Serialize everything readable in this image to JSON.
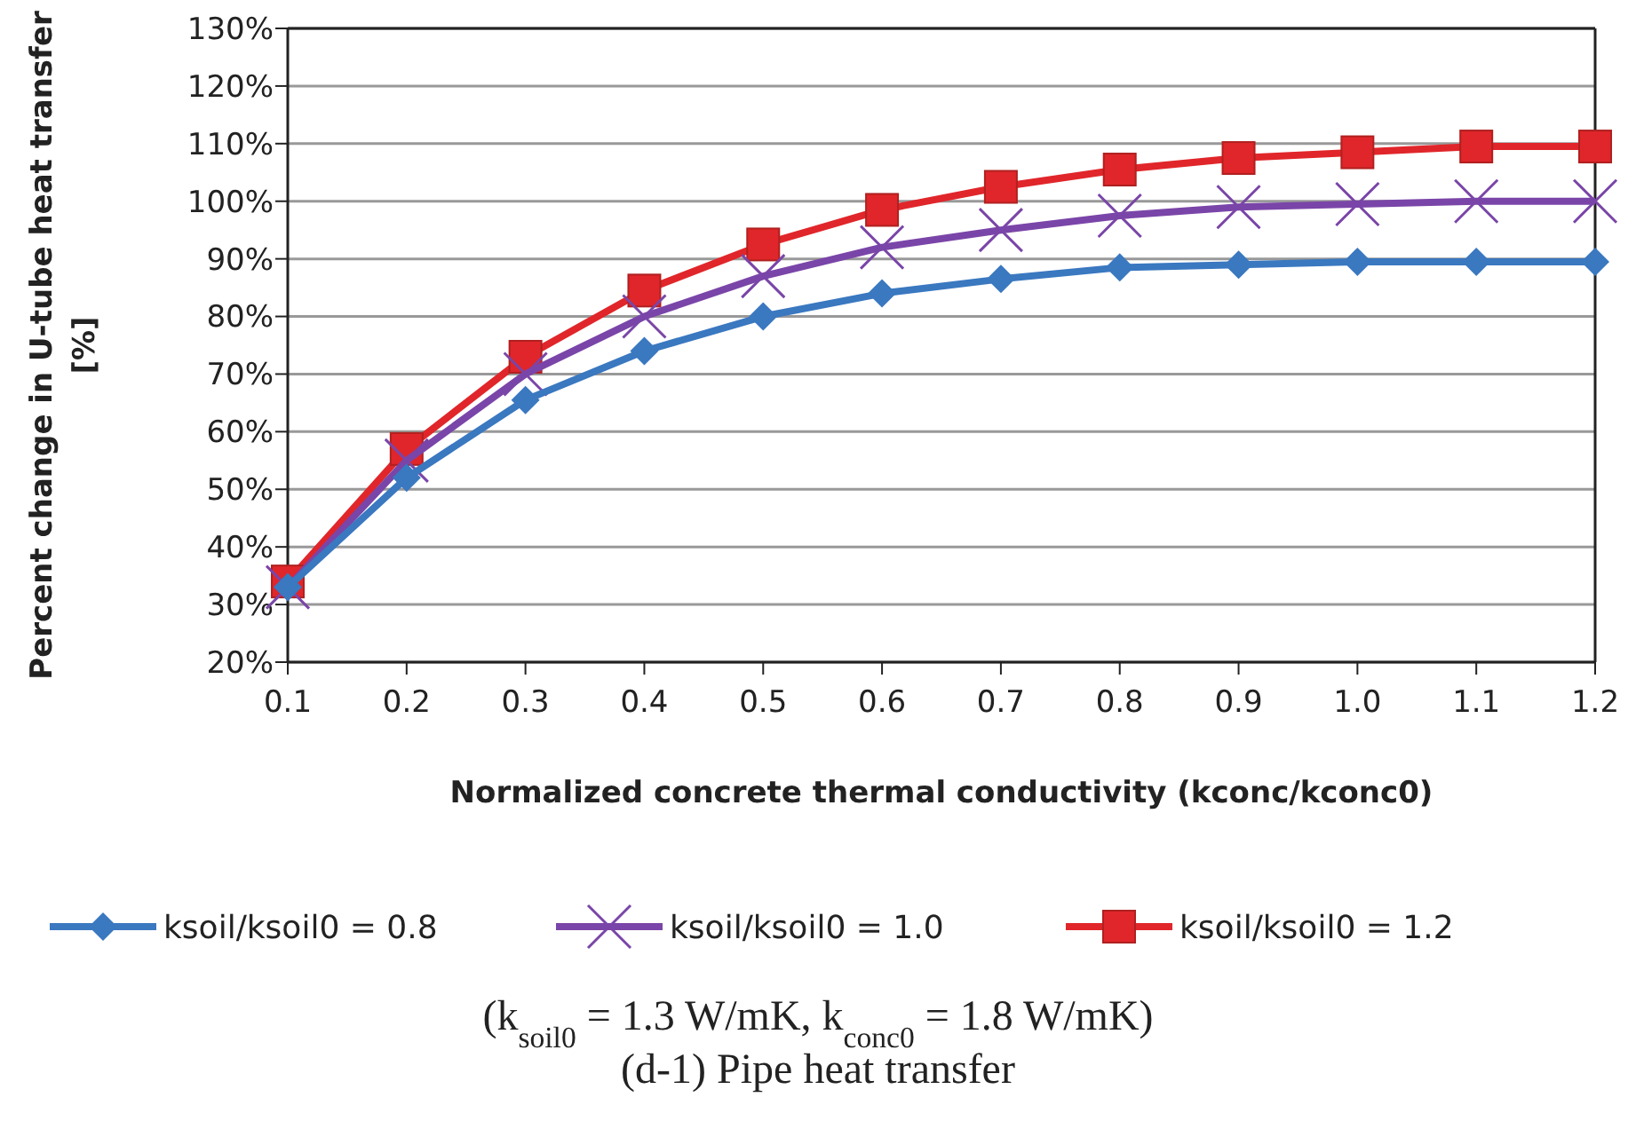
{
  "chart_data": {
    "type": "line",
    "xlabel": "Normalized concrete thermal conductivity (kconc/kconc0)",
    "ylabel": "Percent change in U-tube heat transfer\n[%]",
    "x": [
      0.1,
      0.2,
      0.3,
      0.4,
      0.5,
      0.6,
      0.7,
      0.8,
      0.9,
      1.0,
      1.1,
      1.2
    ],
    "series": [
      {
        "name": "ksoil/ksoil0 = 0.8",
        "color": "#3a78c0",
        "marker": "diamond",
        "values": [
          33,
          52,
          65.5,
          74,
          80,
          84,
          86.5,
          88.5,
          89,
          89.5,
          89.5,
          89.5
        ]
      },
      {
        "name": "ksoil/ksoil0 = 1.0",
        "color": "#7a45a8",
        "marker": "cross",
        "values": [
          33,
          55,
          70,
          80,
          87,
          92,
          95,
          97.5,
          99,
          99.5,
          100,
          100
        ]
      },
      {
        "name": "ksoil/ksoil0 = 1.2",
        "color": "#e0262a",
        "marker": "square",
        "values": [
          34,
          57,
          73,
          84.5,
          92.5,
          98.5,
          102.5,
          105.5,
          107.5,
          108.5,
          109.5,
          109.5
        ]
      }
    ],
    "xlim": [
      0.1,
      1.2
    ],
    "xticks": [
      0.1,
      0.2,
      0.3,
      0.4,
      0.5,
      0.6,
      0.7,
      0.8,
      0.9,
      {
        "value": 1.0,
        "label": "1.0"
      },
      1.1,
      1.2
    ],
    "ylim": [
      20,
      130
    ],
    "yticks": [
      {
        "value": 20,
        "label": "20%"
      },
      {
        "value": 30,
        "label": "30%"
      },
      {
        "value": 40,
        "label": "40%"
      },
      {
        "value": 50,
        "label": "50%"
      },
      {
        "value": 60,
        "label": "60%"
      },
      {
        "value": 70,
        "label": "70%"
      },
      {
        "value": 80,
        "label": "80%"
      },
      {
        "value": 90,
        "label": "90%"
      },
      {
        "value": 100,
        "label": "100%"
      },
      {
        "value": 110,
        "label": "110%"
      },
      {
        "value": 120,
        "label": "120%"
      },
      {
        "value": 130,
        "label": "130%"
      }
    ],
    "grid": "y",
    "legend": "bottom",
    "line_style": "solid",
    "annotations": [
      "(k$_{soil0}$ = 1.3 W/mK, k$_{conc0}$ = 1.8 W/mK)",
      "(d-1) Pipe heat transfer"
    ]
  }
}
